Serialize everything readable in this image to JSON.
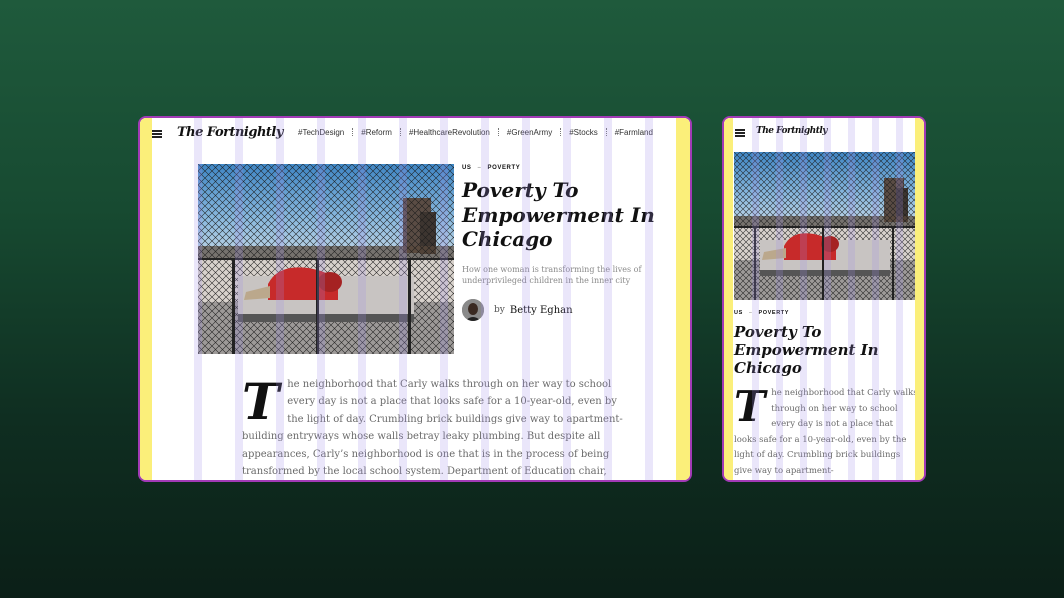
{
  "site": {
    "logo": "The Fortnightly",
    "tags": [
      "#TechDesign",
      "#Reform",
      "#HealthcareRevolution",
      "#GreenArmy",
      "#Stocks",
      "#Farmland"
    ]
  },
  "article": {
    "kicker_section": "US",
    "kicker_topic": "POVERTY",
    "title": "Poverty To Empowerment In Chicago",
    "subtitle": "How one woman is transforming the lives of underprivileged children in the inner city",
    "byline_prefix": "by",
    "author": "Betty Eghan",
    "dropcap": "T",
    "body_desktop": "he neighborhood that Carly walks through on her way to school every day is not a place that looks safe for a 10-year-old, even by the light of day. Crumbling brick buildings give way to apartment-building entryways whose  walls betray leaky plumbing. But despite  all appearances, Carly’s neighborhood is one that is in the process of being transformed by the local school system. Department of Education chair,",
    "body_mobile": "he neighborhood that Carly walks through on her way to school every day is not a place that looks safe for a 10-year-old, even by the light of day. Crumbling brick buildings give way to apartment-"
  },
  "colors": {
    "frame_border": "#a23ab6",
    "margin_band": "#fbef7a",
    "grid_column": "#a08ce6"
  }
}
